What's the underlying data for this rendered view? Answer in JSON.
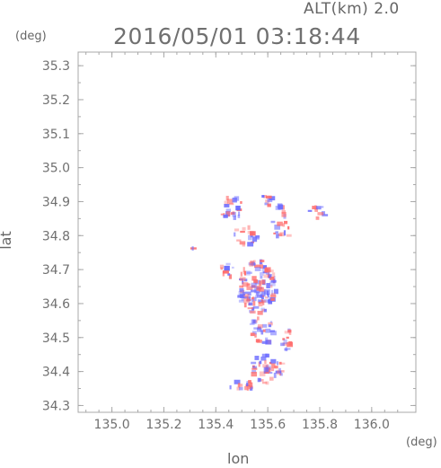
{
  "header": {
    "alt_label": "ALT(km) 2.0",
    "timestamp": "2016/05/01 03:18:44",
    "y_unit": "(deg)",
    "x_unit": "(deg)"
  },
  "chart_data": {
    "type": "heatmap",
    "title": "2016/05/01 03:18:44",
    "subtitle": "ALT(km) 2.0",
    "xlabel": "lon",
    "ylabel": "lat",
    "xunit": "(deg)",
    "yunit": "(deg)",
    "xlim": [
      134.87,
      136.17
    ],
    "ylim": [
      34.28,
      35.34
    ],
    "x_ticks": [
      "135.0",
      "135.2",
      "135.4",
      "135.6",
      "135.8",
      "136.0"
    ],
    "y_ticks": [
      "34.3",
      "34.4",
      "34.5",
      "34.6",
      "34.7",
      "34.8",
      "34.9",
      "35.0",
      "35.1",
      "35.2",
      "35.3"
    ],
    "grid": false,
    "colors": {
      "positive": "#ff6b6b",
      "negative": "#6b6bff",
      "frame": "#a8a8a8"
    },
    "clusters": [
      {
        "lon": 135.46,
        "lat": 34.88,
        "rx": 0.045,
        "ry": 0.035,
        "n": 22
      },
      {
        "lon": 135.6,
        "lat": 34.9,
        "rx": 0.03,
        "ry": 0.02,
        "n": 8
      },
      {
        "lon": 135.66,
        "lat": 34.84,
        "rx": 0.05,
        "ry": 0.05,
        "n": 20
      },
      {
        "lon": 135.52,
        "lat": 34.8,
        "rx": 0.05,
        "ry": 0.035,
        "n": 18
      },
      {
        "lon": 135.79,
        "lat": 34.87,
        "rx": 0.035,
        "ry": 0.02,
        "n": 10
      },
      {
        "lon": 135.56,
        "lat": 34.65,
        "rx": 0.075,
        "ry": 0.08,
        "n": 130
      },
      {
        "lon": 135.44,
        "lat": 34.7,
        "rx": 0.03,
        "ry": 0.025,
        "n": 10
      },
      {
        "lon": 135.58,
        "lat": 34.52,
        "rx": 0.05,
        "ry": 0.04,
        "n": 30
      },
      {
        "lon": 135.67,
        "lat": 34.49,
        "rx": 0.03,
        "ry": 0.04,
        "n": 14
      },
      {
        "lon": 135.6,
        "lat": 34.41,
        "rx": 0.06,
        "ry": 0.045,
        "n": 45
      },
      {
        "lon": 135.5,
        "lat": 34.36,
        "rx": 0.05,
        "ry": 0.015,
        "n": 16
      },
      {
        "lon": 135.31,
        "lat": 34.76,
        "rx": 0.005,
        "ry": 0.005,
        "n": 2
      }
    ]
  }
}
